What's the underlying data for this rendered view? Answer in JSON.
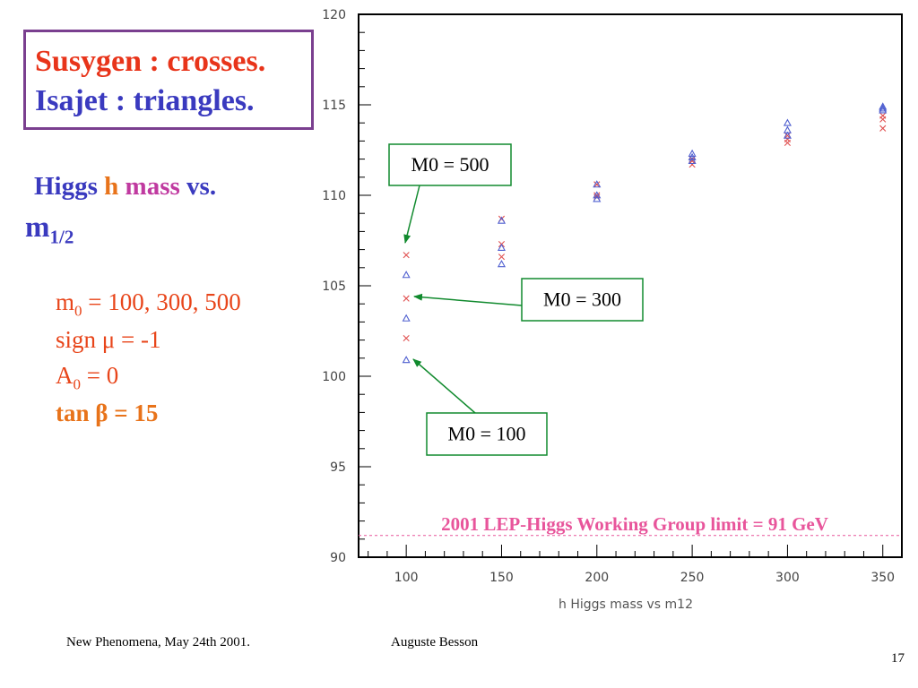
{
  "legend": {
    "line1": "Susygen : crosses.",
    "line2": "Isajet : triangles."
  },
  "heading": {
    "w1": "Higgs",
    "w2": "h",
    "w3": "mass",
    "w4": "vs.",
    "m": "m",
    "m_sub": "1/2"
  },
  "params": {
    "m0_base": "m",
    "m0_sub": "0",
    "m0_rest": " = 100, 300, 500",
    "sign": "sign μ = -1",
    "a0_base": "A",
    "a0_sub": "0",
    "a0_rest": " = 0",
    "tanb": "tan β = 15"
  },
  "callouts": {
    "m500": "M0 = 500",
    "m300": "M0 = 300",
    "m100": "M0 = 100"
  },
  "limit_label": "2001 LEP-Higgs Working Group limit = 91 GeV",
  "footer": {
    "left": "New Phenomena, May 24th 2001.",
    "center": "Auguste Besson",
    "page": "17"
  },
  "colors": {
    "crosses": "#e05050",
    "triangles": "#5060d0",
    "limit": "#e8559b",
    "callout": "#118a2e",
    "legend_red": "#e8341a",
    "legend_blue": "#3a3abf"
  },
  "chart_data": {
    "type": "scatter",
    "xlabel": "h Higgs mass vs m12",
    "ylabel": "",
    "xlim": [
      75,
      360
    ],
    "ylim": [
      90,
      120
    ],
    "xticks": [
      100,
      150,
      200,
      250,
      300,
      350
    ],
    "yticks": [
      90,
      95,
      100,
      105,
      110,
      115,
      120
    ],
    "limit_line": 91.2,
    "series": [
      {
        "name": "Susygen",
        "marker": "cross",
        "points": [
          [
            100,
            106.7
          ],
          [
            100,
            104.3
          ],
          [
            100,
            102.1
          ],
          [
            150,
            108.7
          ],
          [
            150,
            107.3
          ],
          [
            150,
            106.6
          ],
          [
            200,
            110.6
          ],
          [
            200,
            110.0
          ],
          [
            200,
            109.9
          ],
          [
            250,
            112.0
          ],
          [
            250,
            111.9
          ],
          [
            250,
            111.7
          ],
          [
            300,
            113.3
          ],
          [
            300,
            113.1
          ],
          [
            300,
            112.9
          ],
          [
            350,
            114.4
          ],
          [
            350,
            114.2
          ],
          [
            350,
            113.7
          ]
        ]
      },
      {
        "name": "Isajet",
        "marker": "triangle",
        "points": [
          [
            100,
            105.6
          ],
          [
            100,
            103.2
          ],
          [
            100,
            100.9
          ],
          [
            150,
            108.6
          ],
          [
            150,
            107.1
          ],
          [
            150,
            106.2
          ],
          [
            200,
            110.6
          ],
          [
            200,
            110.0
          ],
          [
            200,
            109.8
          ],
          [
            250,
            112.3
          ],
          [
            250,
            112.1
          ],
          [
            250,
            111.9
          ],
          [
            300,
            114.0
          ],
          [
            300,
            113.6
          ],
          [
            300,
            113.3
          ],
          [
            350,
            114.9
          ],
          [
            350,
            114.8
          ],
          [
            350,
            114.7
          ]
        ]
      }
    ]
  }
}
